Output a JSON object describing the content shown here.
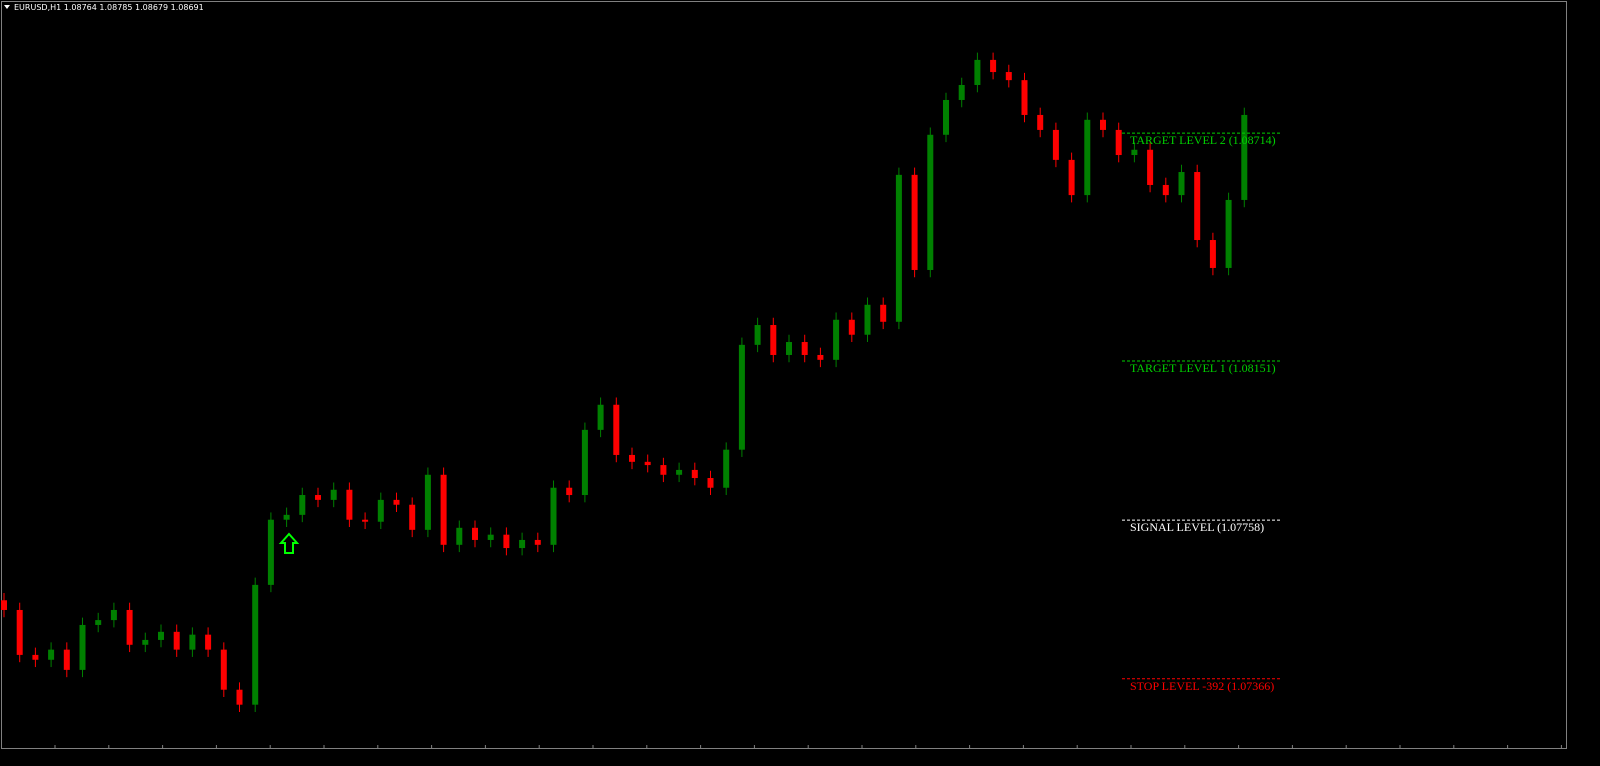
{
  "chart_data": {
    "type": "candlestick",
    "title": "EURUSD,H1  1.08764 1.08785 1.08679 1.08691",
    "up_color": "#008000",
    "down_color": "#ff0000",
    "ylim": [
      1.07195,
      1.09043
    ],
    "open": [
      1.0756,
      1.07536,
      1.07425,
      1.07413,
      1.07438,
      1.07388,
      1.07499,
      1.07511,
      1.07536,
      1.0745,
      1.07462,
      1.07482,
      1.07438,
      1.07475,
      1.07438,
      1.07339,
      1.07302,
      1.07598,
      1.07759,
      1.07771,
      1.0782,
      1.07808,
      1.07833,
      1.07759,
      1.07754,
      1.07808,
      1.07796,
      1.07734,
      1.0787,
      1.07697,
      1.07739,
      1.07709,
      1.07722,
      1.07689,
      1.07709,
      1.07697,
      1.07838,
      1.0782,
      1.07981,
      1.08043,
      1.07919,
      1.07902,
      1.07894,
      1.0787,
      1.07882,
      1.07862,
      1.07838,
      1.07932,
      1.08191,
      1.0824,
      1.08166,
      1.08198,
      1.08166,
      1.08154,
      1.08253,
      1.08216,
      1.0829,
      1.08248,
      1.08611,
      1.08376,
      1.0871,
      1.08796,
      1.08833,
      1.08895,
      1.08865,
      1.08845,
      1.08759,
      1.08722,
      1.08648,
      1.08561,
      1.08747,
      1.08722,
      1.0866,
      1.08673,
      1.08586,
      1.08561,
      1.08618,
      1.0845,
      1.08381,
      1.08549
    ],
    "high": [
      1.07578,
      1.07554,
      1.07443,
      1.07456,
      1.07456,
      1.07517,
      1.07529,
      1.07554,
      1.07554,
      1.0748,
      1.075,
      1.075,
      1.07493,
      1.07493,
      1.07456,
      1.07357,
      1.07616,
      1.07777,
      1.07789,
      1.07838,
      1.07838,
      1.07851,
      1.07851,
      1.07777,
      1.07826,
      1.07826,
      1.07814,
      1.07888,
      1.07888,
      1.07757,
      1.07757,
      1.0774,
      1.0774,
      1.07727,
      1.07727,
      1.07856,
      1.07856,
      1.07999,
      1.08061,
      1.08061,
      1.07937,
      1.0792,
      1.07912,
      1.079,
      1.079,
      1.0788,
      1.0795,
      1.08209,
      1.08258,
      1.08258,
      1.08216,
      1.08216,
      1.08184,
      1.08271,
      1.08271,
      1.08308,
      1.08308,
      1.08629,
      1.08629,
      1.08728,
      1.08814,
      1.08851,
      1.08913,
      1.08913,
      1.08883,
      1.08863,
      1.08777,
      1.0874,
      1.08666,
      1.08765,
      1.08765,
      1.0874,
      1.08691,
      1.08691,
      1.08604,
      1.08636,
      1.08636,
      1.08468,
      1.08567,
      1.08777
    ],
    "low": [
      1.07518,
      1.07407,
      1.07395,
      1.07395,
      1.0737,
      1.0737,
      1.07481,
      1.07493,
      1.07432,
      1.07432,
      1.07444,
      1.0742,
      1.0742,
      1.0742,
      1.07321,
      1.07284,
      1.07284,
      1.0758,
      1.07741,
      1.07753,
      1.0779,
      1.0779,
      1.07741,
      1.07736,
      1.07736,
      1.07778,
      1.07716,
      1.07716,
      1.07679,
      1.07679,
      1.07691,
      1.07691,
      1.07671,
      1.07671,
      1.07679,
      1.07679,
      1.07802,
      1.07802,
      1.07963,
      1.07901,
      1.07884,
      1.07876,
      1.07852,
      1.07852,
      1.07844,
      1.0782,
      1.0782,
      1.07914,
      1.08173,
      1.08148,
      1.08148,
      1.08148,
      1.08136,
      1.08136,
      1.08198,
      1.08198,
      1.0823,
      1.0823,
      1.08358,
      1.08358,
      1.08692,
      1.08778,
      1.08815,
      1.08847,
      1.08827,
      1.08741,
      1.08704,
      1.0863,
      1.08543,
      1.08543,
      1.08704,
      1.08642,
      1.08642,
      1.08568,
      1.08543,
      1.08543,
      1.08432,
      1.08363,
      1.08363,
      1.08531
    ],
    "close": [
      1.07536,
      1.07425,
      1.07413,
      1.07438,
      1.07388,
      1.07499,
      1.07511,
      1.07536,
      1.0745,
      1.07462,
      1.07482,
      1.07438,
      1.07475,
      1.07438,
      1.07339,
      1.07302,
      1.07598,
      1.07759,
      1.07771,
      1.0782,
      1.07808,
      1.07833,
      1.07759,
      1.07754,
      1.07808,
      1.07796,
      1.07734,
      1.0787,
      1.07697,
      1.07739,
      1.07709,
      1.07722,
      1.07689,
      1.07709,
      1.07697,
      1.07838,
      1.0782,
      1.07981,
      1.08043,
      1.07919,
      1.07902,
      1.07894,
      1.0787,
      1.07882,
      1.07862,
      1.07838,
      1.07932,
      1.08191,
      1.0824,
      1.08166,
      1.08198,
      1.08166,
      1.08154,
      1.08253,
      1.08216,
      1.0829,
      1.08248,
      1.08611,
      1.08376,
      1.0871,
      1.08796,
      1.08833,
      1.08895,
      1.08865,
      1.08845,
      1.08759,
      1.08722,
      1.08648,
      1.08561,
      1.08747,
      1.08722,
      1.0866,
      1.08673,
      1.08586,
      1.08561,
      1.08618,
      1.0845,
      1.08381,
      1.08549,
      1.08759
    ],
    "levels": [
      {
        "label": "TARGET LEVEL 2 (1.08714)",
        "value": 1.08714,
        "color": "#00d000"
      },
      {
        "label": "TARGET LEVEL 1 (1.08151)",
        "value": 1.08151,
        "color": "#00d000"
      },
      {
        "label": "SIGNAL LEVEL (1.07758)",
        "value": 1.07758,
        "color": "#ffffff"
      },
      {
        "label": "STOP LEVEL -392 (1.07366)",
        "value": 1.07366,
        "color": "#ff0000"
      }
    ]
  }
}
